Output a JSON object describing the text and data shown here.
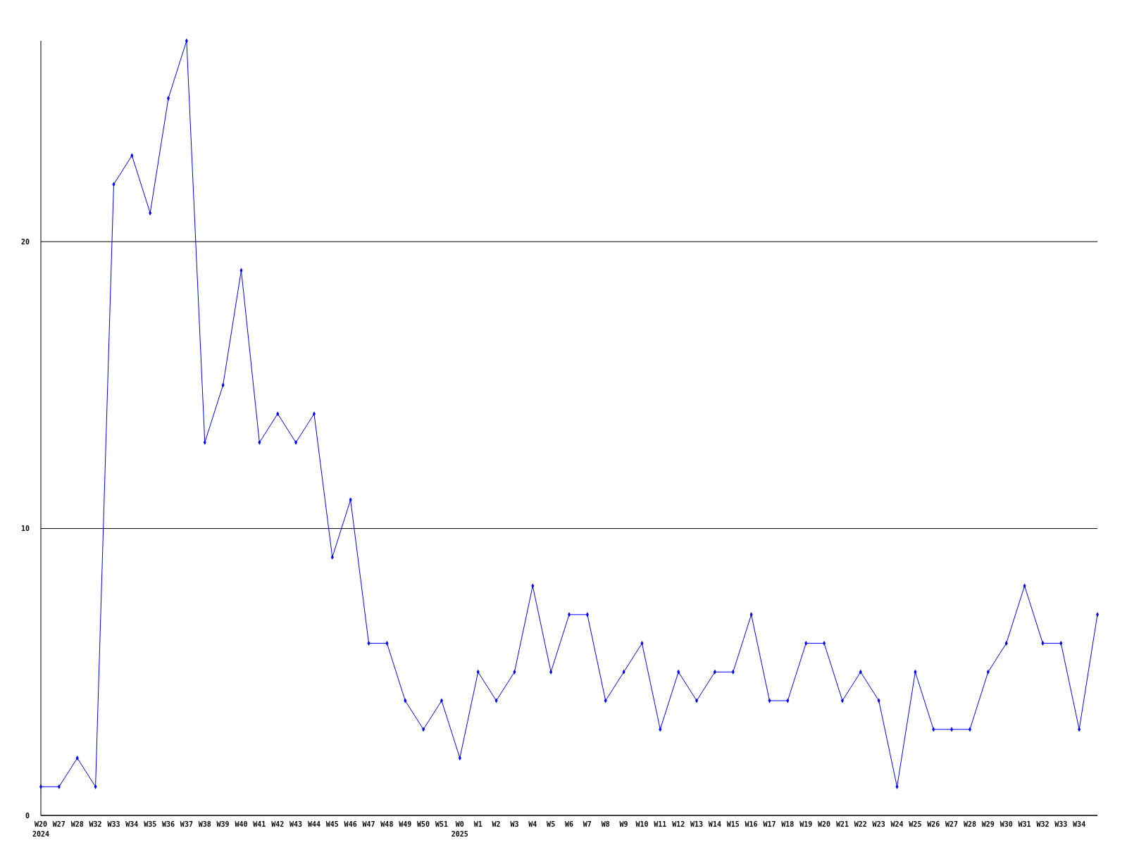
{
  "chart_data": {
    "type": "line",
    "categories": [
      "W20\n2024",
      "W27",
      "W28",
      "W32",
      "W33",
      "W34",
      "W35",
      "W36",
      "W37",
      "W38",
      "W39",
      "W40",
      "W41",
      "W42",
      "W43",
      "W44",
      "W45",
      "W46",
      "W47",
      "W48",
      "W49",
      "W50",
      "W51",
      "W0\n2025",
      "W1",
      "W2",
      "W3",
      "W4",
      "W5",
      "W6",
      "W7",
      "W8",
      "W9",
      "W10",
      "W11",
      "W12",
      "W13",
      "W14",
      "W15",
      "W16",
      "W17",
      "W18",
      "W19",
      "W20",
      "W21",
      "W22",
      "W23",
      "W24",
      "W25",
      "W26",
      "W27",
      "W28",
      "W29",
      "W30",
      "W31",
      "W32",
      "W33",
      "W34",
      null
    ],
    "series": [
      {
        "color": "#0000ff",
        "values": [
          1,
          1,
          2,
          1,
          22,
          23,
          21,
          25,
          27,
          13,
          15,
          19,
          13,
          14,
          13,
          14,
          9,
          11,
          6,
          6,
          4,
          3,
          4,
          2,
          5,
          4,
          5,
          8,
          5,
          7,
          7,
          4,
          5,
          6,
          3,
          5,
          4,
          5,
          5,
          7,
          4,
          4,
          6,
          6,
          4,
          5,
          4,
          1,
          5,
          3,
          3,
          3,
          5,
          6,
          8,
          6,
          6,
          3,
          7
        ]
      }
    ],
    "ylim": [
      0,
      27
    ],
    "yticks": [
      0,
      10,
      20
    ],
    "grid": "y",
    "marker": "diamond",
    "line_style": "solid"
  }
}
